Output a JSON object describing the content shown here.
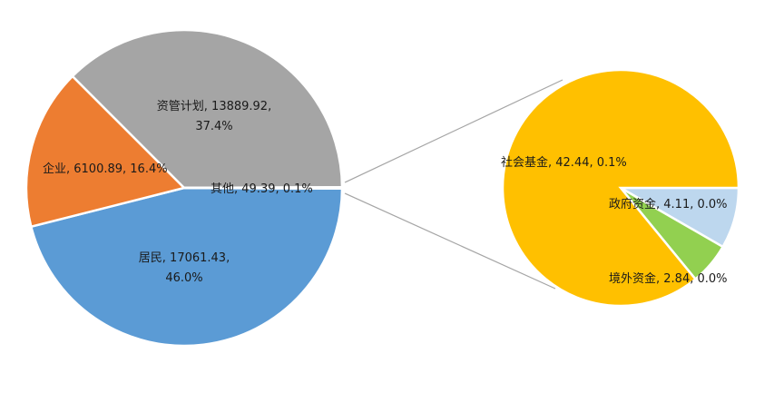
{
  "chart_data": {
    "type": "pie",
    "title": "",
    "main_pie": {
      "slices": [
        {
          "name": "居民",
          "value": 17061.43,
          "percent": "46.0%",
          "label_lines": [
            "居民, 17061.43,",
            "46.0%"
          ],
          "color": "#5b9bd5"
        },
        {
          "name": "企业",
          "value": 6100.89,
          "percent": "16.4%",
          "label_lines": [
            "企业, 6100.89, 16.4%"
          ],
          "color": "#ed7d31"
        },
        {
          "name": "资管计划",
          "value": 13889.92,
          "percent": "37.4%",
          "label_lines": [
            "资管计划, 13889.92,",
            "37.4%"
          ],
          "color": "#a5a5a5"
        },
        {
          "name": "其他",
          "value": 49.39,
          "percent": "0.1%",
          "label_lines": [
            "其他, 49.39, 0.1%"
          ],
          "color": "#a5a5a5"
        }
      ]
    },
    "detail_pie": {
      "of": "其他",
      "slices": [
        {
          "name": "社会基金",
          "value": 42.44,
          "percent": "0.1%",
          "label_lines": [
            "社会基金, 42.44, 0.1%"
          ],
          "color": "#ffc000"
        },
        {
          "name": "政府资金",
          "value": 4.11,
          "percent": "0.0%",
          "label_lines": [
            "政府资金, 4.11, 0.0%"
          ],
          "color": "#bdd7ee"
        },
        {
          "name": "境外资金",
          "value": 2.84,
          "percent": "0.0%",
          "label_lines": [
            "境外资金, 2.84, 0.0%"
          ],
          "color": "#92d050"
        }
      ]
    },
    "legend": "none",
    "grid": false
  }
}
